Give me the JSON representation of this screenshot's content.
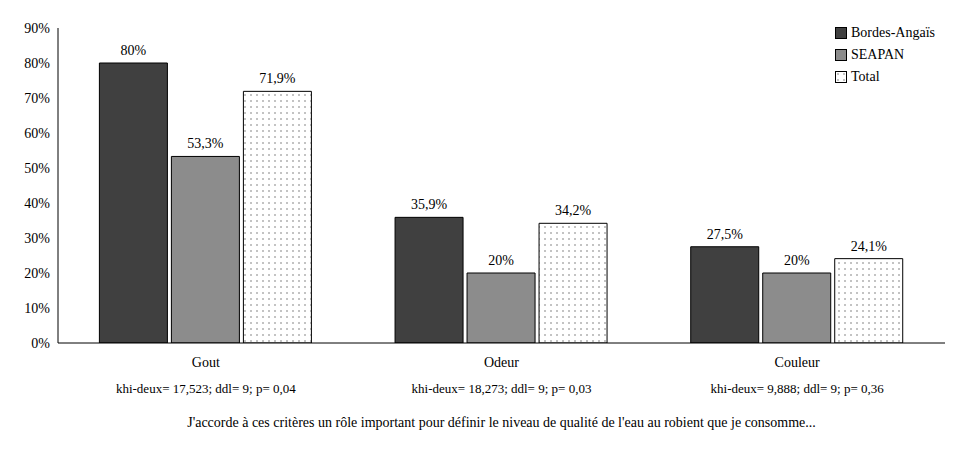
{
  "chart_data": {
    "type": "bar",
    "categories": [
      "Gout",
      "Odeur",
      "Couleur"
    ],
    "annotations": [
      "khi-deux= 17,523; ddl= 9; p= 0,04",
      "khi-deux= 18,273; ddl= 9; p= 0,03",
      "khi-deux= 9,888; ddl= 9; p= 0,36"
    ],
    "xlabel": "J'accorde à ces critères un rôle important pour définir le niveau de qualité de l'eau au robient que je consomme...",
    "series": [
      {
        "name": "Bordes-Angaïs",
        "color": "#404040",
        "values": [
          80,
          35.9,
          27.5
        ],
        "value_labels": [
          "80%",
          "35,9%",
          "27,5%"
        ]
      },
      {
        "name": "SEAPAN",
        "color": "#8c8c8c",
        "values": [
          53.3,
          20,
          20
        ],
        "value_labels": [
          "53,3%",
          "20%",
          "20%"
        ]
      },
      {
        "name": "Total",
        "color": "#ffffff",
        "values": [
          71.9,
          34.2,
          24.1
        ],
        "value_labels": [
          "71,9%",
          "34,2%",
          "24,1%"
        ]
      }
    ],
    "ylim": [
      0,
      90
    ],
    "yticks": [
      {
        "value": 0,
        "label": "0%"
      },
      {
        "value": 10,
        "label": "10%"
      },
      {
        "value": 20,
        "label": "20%"
      },
      {
        "value": 30,
        "label": "30%"
      },
      {
        "value": 40,
        "label": "40%"
      },
      {
        "value": 50,
        "label": "50%"
      },
      {
        "value": 60,
        "label": "60%"
      },
      {
        "value": 70,
        "label": "70%"
      },
      {
        "value": 80,
        "label": "80%"
      },
      {
        "value": 90,
        "label": "90%"
      }
    ],
    "data_labels": true,
    "legend": "upper right",
    "grid": false
  }
}
